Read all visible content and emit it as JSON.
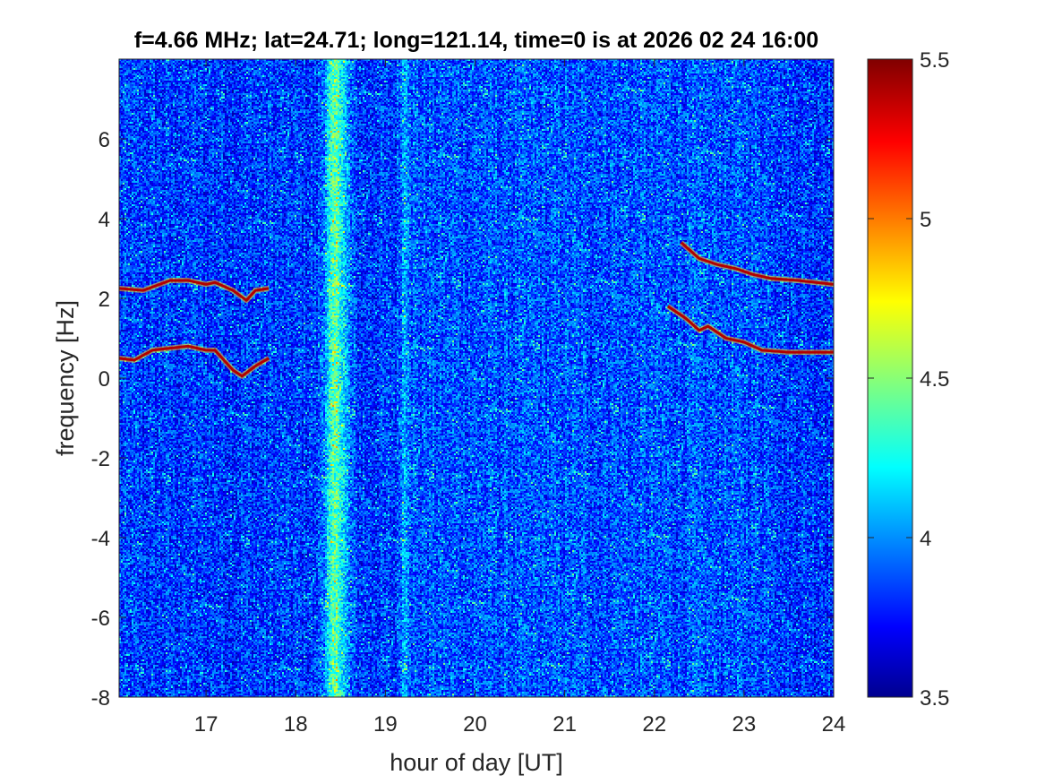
{
  "chart_data": {
    "type": "heatmap",
    "title": "f=4.66 MHz;  lat=24.71; long=121.14, time=0 is at 2026 02 24 16:00",
    "xlabel": "hour of day [UT]",
    "ylabel": "frequency [Hz]",
    "xlim": [
      16.03,
      24.0
    ],
    "ylim": [
      -8,
      8
    ],
    "x_ticks": [
      17,
      18,
      19,
      20,
      21,
      22,
      23,
      24
    ],
    "y_ticks": [
      -8,
      -6,
      -4,
      -2,
      0,
      2,
      4,
      6
    ],
    "colorbar": {
      "colormap": "jet",
      "clim": [
        3.5,
        5.5
      ],
      "ticks": [
        3.5,
        4,
        4.5,
        5,
        5.5
      ],
      "placement": "right"
    },
    "background_level": 3.85,
    "features": [
      {
        "name": "broadband-stripe",
        "x_range": [
          18.3,
          18.6
        ],
        "level": 4.4
      },
      {
        "name": "weak-stripe",
        "x_range": [
          19.15,
          19.3
        ],
        "level": 4.1
      },
      {
        "name": "trace-upper-left",
        "level": 5.4,
        "points": [
          [
            16.03,
            2.25
          ],
          [
            16.3,
            2.2
          ],
          [
            16.6,
            2.45
          ],
          [
            16.8,
            2.45
          ],
          [
            17.0,
            2.35
          ],
          [
            17.1,
            2.4
          ],
          [
            17.3,
            2.2
          ],
          [
            17.45,
            1.95
          ],
          [
            17.55,
            2.2
          ],
          [
            17.7,
            2.25
          ]
        ]
      },
      {
        "name": "trace-lower-left",
        "level": 5.4,
        "points": [
          [
            16.03,
            0.5
          ],
          [
            16.2,
            0.45
          ],
          [
            16.4,
            0.7
          ],
          [
            16.6,
            0.75
          ],
          [
            16.8,
            0.8
          ],
          [
            17.0,
            0.7
          ],
          [
            17.1,
            0.7
          ],
          [
            17.3,
            0.2
          ],
          [
            17.4,
            0.05
          ],
          [
            17.55,
            0.3
          ],
          [
            17.7,
            0.5
          ]
        ]
      },
      {
        "name": "trace-upper-right",
        "level": 5.4,
        "points": [
          [
            22.3,
            3.4
          ],
          [
            22.5,
            3.0
          ],
          [
            22.7,
            2.85
          ],
          [
            22.9,
            2.75
          ],
          [
            23.1,
            2.6
          ],
          [
            23.3,
            2.5
          ],
          [
            23.6,
            2.45
          ],
          [
            24.0,
            2.35
          ]
        ]
      },
      {
        "name": "trace-lower-right",
        "level": 5.4,
        "points": [
          [
            22.15,
            1.8
          ],
          [
            22.35,
            1.5
          ],
          [
            22.5,
            1.2
          ],
          [
            22.6,
            1.3
          ],
          [
            22.8,
            1.0
          ],
          [
            23.0,
            0.9
          ],
          [
            23.2,
            0.7
          ],
          [
            23.5,
            0.65
          ],
          [
            24.0,
            0.65
          ]
        ]
      }
    ]
  }
}
